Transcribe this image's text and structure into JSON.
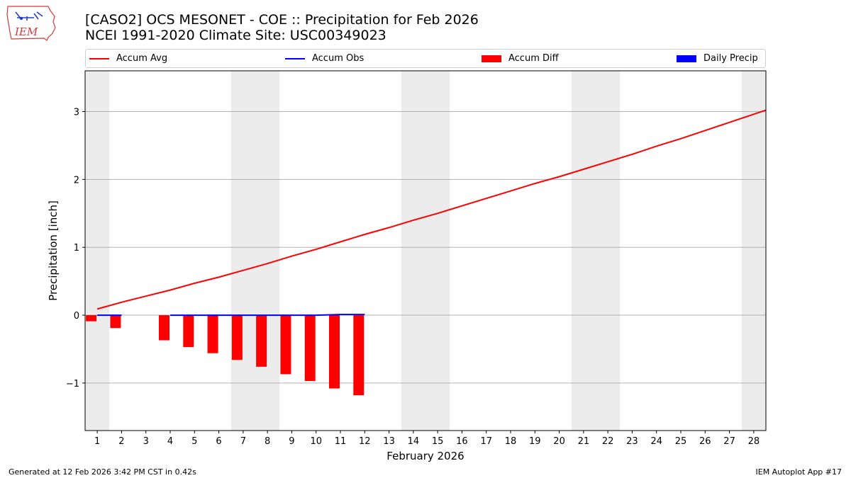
{
  "header": {
    "title_line1": "[CASO2] OCS MESONET - COE :: Precipitation for Feb 2026",
    "title_line2": "NCEI 1991-2020 Climate Site: USC00349023",
    "logo_text": "IEM"
  },
  "footer": {
    "generated": "Generated at 12 Feb 2026 3:42 PM CST in 0.42s",
    "app": "IEM Autoplot App #17"
  },
  "chart_data": {
    "type": "bar",
    "title": "[CASO2] OCS MESONET - COE :: Precipitation for Feb 2026",
    "xlabel": "February 2026",
    "ylabel": "Precipitation [inch]",
    "xlim": [
      0.5,
      28.5
    ],
    "ylim": [
      -1.7,
      3.6
    ],
    "yticks": [
      -1,
      0,
      1,
      2,
      3
    ],
    "ytick_labels": [
      "−1",
      "0",
      "1",
      "2",
      "3"
    ],
    "days": [
      1,
      2,
      3,
      4,
      5,
      6,
      7,
      8,
      9,
      10,
      11,
      12,
      13,
      14,
      15,
      16,
      17,
      18,
      19,
      20,
      21,
      22,
      23,
      24,
      25,
      26,
      27,
      28
    ],
    "weekend_bands": [
      [
        0.5,
        1.5
      ],
      [
        6.5,
        8.5
      ],
      [
        13.5,
        15.5
      ],
      [
        20.5,
        22.5
      ],
      [
        27.5,
        28.5
      ]
    ],
    "legend": [
      {
        "label": "Accum Avg",
        "kind": "line",
        "color": "#ff0000"
      },
      {
        "label": "Accum Obs",
        "kind": "line",
        "color": "#0000ff"
      },
      {
        "label": "Accum Diff",
        "kind": "bar",
        "color": "#ff0000"
      },
      {
        "label": "Daily Precip",
        "kind": "bar",
        "color": "#0000ff"
      }
    ],
    "series": [
      {
        "name": "Accum Avg",
        "kind": "line",
        "color": "#ff0000",
        "x": [
          1,
          2,
          3,
          4,
          5,
          6,
          7,
          8,
          9,
          10,
          11,
          12,
          13,
          14,
          15,
          16,
          17,
          18,
          19,
          20,
          21,
          22,
          23,
          24,
          25,
          26,
          27,
          28,
          28.5
        ],
        "values": [
          0.09,
          0.19,
          0.28,
          0.37,
          0.47,
          0.56,
          0.66,
          0.76,
          0.87,
          0.97,
          1.08,
          1.19,
          1.29,
          1.4,
          1.5,
          1.61,
          1.72,
          1.83,
          1.94,
          2.04,
          2.15,
          2.26,
          2.37,
          2.49,
          2.6,
          2.72,
          2.84,
          2.96,
          3.02
        ]
      },
      {
        "name": "Accum Obs",
        "kind": "line",
        "color": "#0000ff",
        "x": [
          1,
          2,
          4,
          5,
          6,
          7,
          8,
          9,
          10,
          11,
          12
        ],
        "values": [
          0.0,
          0.0,
          0.0,
          0.0,
          0.0,
          0.0,
          0.0,
          0.0,
          0.0,
          0.01,
          0.01
        ],
        "break_after_index": 1
      },
      {
        "name": "Accum Diff",
        "kind": "bar",
        "color": "#ff0000",
        "x": [
          1,
          2,
          4,
          5,
          6,
          7,
          8,
          9,
          10,
          11,
          12
        ],
        "values": [
          -0.09,
          -0.19,
          -0.37,
          -0.47,
          -0.56,
          -0.66,
          -0.76,
          -0.87,
          -0.97,
          -1.08,
          -1.18
        ]
      },
      {
        "name": "Daily Precip",
        "kind": "bar",
        "color": "#0000ff",
        "x": [],
        "values": []
      }
    ]
  }
}
